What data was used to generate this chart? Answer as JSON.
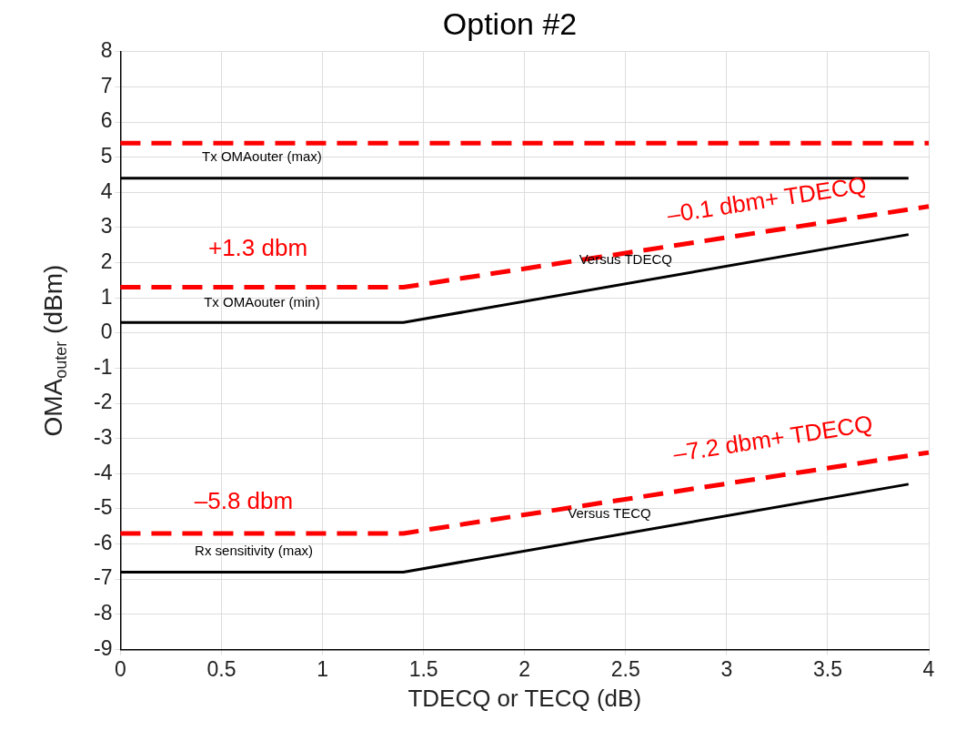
{
  "chart_data": {
    "type": "line",
    "title": "Option #2",
    "xlabel": "TDECQ or TECQ (dB)",
    "ylabel": "OMA$_{outer}$ (dBm)",
    "xlim": [
      0,
      4
    ],
    "xticks": [
      0,
      {
        "value": 0.5,
        "label": "0.5"
      },
      1,
      {
        "value": 1.5,
        "label": "1.5"
      },
      2,
      {
        "value": 2.5,
        "label": "2.5"
      },
      3,
      {
        "value": 3.5,
        "label": "3.5"
      },
      4
    ],
    "ylim": [
      -9,
      8
    ],
    "yticks": [
      -9,
      -8,
      -7,
      -6,
      -5,
      -4,
      -3,
      -2,
      -1,
      0,
      1,
      2,
      3,
      4,
      5,
      6,
      7,
      8
    ],
    "grid": true,
    "series": [
      {
        "color": "#ff0000",
        "line_style": "dashed",
        "x": [
          0,
          4
        ],
        "values": [
          5.4,
          5.4
        ]
      },
      {
        "color": "#000000",
        "line_style": "solid",
        "x": [
          0,
          3.9
        ],
        "values": [
          4.4,
          4.4
        ]
      },
      {
        "color": "#ff0000",
        "line_style": "dashed",
        "x": [
          0,
          1.4,
          4
        ],
        "values": [
          1.3,
          1.3,
          3.6
        ]
      },
      {
        "color": "#000000",
        "line_style": "solid",
        "x": [
          0,
          1.4,
          3.9
        ],
        "values": [
          0.3,
          0.3,
          2.8
        ]
      },
      {
        "color": "#ff0000",
        "line_style": "dashed",
        "x": [
          0,
          1.4,
          4
        ],
        "values": [
          -5.7,
          -5.7,
          -3.4
        ]
      },
      {
        "color": "#000000",
        "line_style": "solid",
        "x": [
          0,
          1.4,
          3.9
        ],
        "values": [
          -6.8,
          -6.8,
          -4.3
        ]
      }
    ],
    "annotations": [
      "Tx OMAouter (max)",
      "+1.3 dbm",
      "–0.1 dbm+ TDECQ",
      "Versus TDECQ",
      "Tx OMAouter (min)",
      "–5.8 dbm",
      "–7.2 dbm+ TDECQ",
      "Versus TECQ",
      "Rx sensitivity (max)"
    ]
  }
}
